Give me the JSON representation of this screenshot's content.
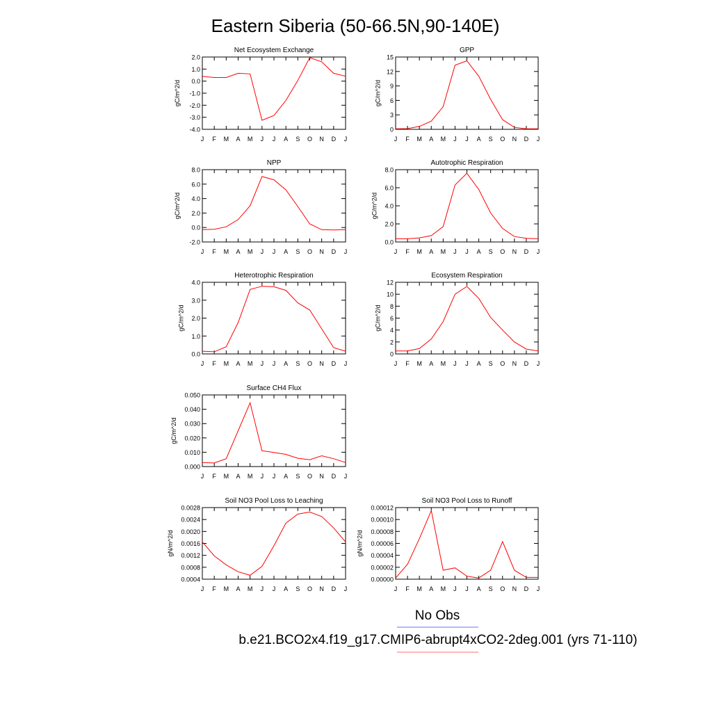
{
  "figure": {
    "title": "Eastern Siberia (50-66.5N,90-140E)",
    "legend": {
      "obs_label": "No Obs",
      "obs_color": "#6f6fff",
      "model_label": "b.e21.BCO2x4.f19_g17.CMIP6-abrupt4xCO2-2deg.001 (yrs 71-110)",
      "model_color": "#ff6f6f"
    },
    "line_color": "#ff0000"
  },
  "chart_data": [
    {
      "type": "line",
      "title": "Net Ecosystem Exchange",
      "ylabel": "gC/m^2/d",
      "x": [
        "J",
        "F",
        "M",
        "A",
        "M",
        "J",
        "J",
        "A",
        "S",
        "O",
        "N",
        "D",
        "J"
      ],
      "ylim": [
        -4.0,
        2.0
      ],
      "yticks": [
        "2.0",
        "1.0",
        "0.0",
        "-1.0",
        "-2.0",
        "-3.0",
        "-4.0"
      ],
      "series": [
        {
          "values": [
            0.4,
            0.3,
            0.3,
            0.65,
            0.6,
            -3.25,
            -2.85,
            -1.6,
            0.05,
            1.95,
            1.6,
            0.65,
            0.4
          ]
        }
      ]
    },
    {
      "type": "line",
      "title": "GPP",
      "ylabel": "gC/m^2/d",
      "x": [
        "J",
        "F",
        "M",
        "A",
        "M",
        "J",
        "J",
        "A",
        "S",
        "O",
        "N",
        "D",
        "J"
      ],
      "ylim": [
        0,
        15
      ],
      "yticks": [
        "15",
        "12",
        "9",
        "6",
        "3",
        "0"
      ],
      "series": [
        {
          "values": [
            0.1,
            0.15,
            0.6,
            1.7,
            4.7,
            13.3,
            14.2,
            11.0,
            6.2,
            2.0,
            0.4,
            0.1,
            0.1
          ]
        }
      ]
    },
    {
      "type": "line",
      "title": "NPP",
      "ylabel": "gC/m^2/d",
      "x": [
        "J",
        "F",
        "M",
        "A",
        "M",
        "J",
        "J",
        "A",
        "S",
        "O",
        "N",
        "D",
        "J"
      ],
      "ylim": [
        -2.0,
        8.0
      ],
      "yticks": [
        "8.0",
        "6.0",
        "4.0",
        "2.0",
        "0.0",
        "-2.0"
      ],
      "series": [
        {
          "values": [
            -0.3,
            -0.25,
            0.1,
            1.1,
            3.0,
            7.05,
            6.6,
            5.2,
            2.9,
            0.5,
            -0.3,
            -0.35,
            -0.3
          ]
        }
      ]
    },
    {
      "type": "line",
      "title": "Autotrophic Respiration",
      "ylabel": "gC/m^2/d",
      "x": [
        "J",
        "F",
        "M",
        "A",
        "M",
        "J",
        "J",
        "A",
        "S",
        "O",
        "N",
        "D",
        "J"
      ],
      "ylim": [
        0,
        8.0
      ],
      "yticks": [
        "8.0",
        "6.0",
        "4.0",
        "2.0",
        "0.0"
      ],
      "series": [
        {
          "values": [
            0.35,
            0.35,
            0.45,
            0.7,
            1.7,
            6.3,
            7.6,
            5.8,
            3.2,
            1.5,
            0.6,
            0.4,
            0.35
          ]
        }
      ]
    },
    {
      "type": "line",
      "title": "Heterotrophic Respiration",
      "ylabel": "gC/m^2/d",
      "x": [
        "J",
        "F",
        "M",
        "A",
        "M",
        "J",
        "J",
        "A",
        "S",
        "O",
        "N",
        "D",
        "J"
      ],
      "ylim": [
        0,
        4.0
      ],
      "yticks": [
        "4.0",
        "3.0",
        "2.0",
        "1.0",
        "0.0"
      ],
      "series": [
        {
          "values": [
            0.15,
            0.12,
            0.4,
            1.75,
            3.6,
            3.78,
            3.75,
            3.55,
            2.85,
            2.45,
            1.4,
            0.35,
            0.15
          ]
        }
      ]
    },
    {
      "type": "line",
      "title": "Ecosystem Respiration",
      "ylabel": "gC/m^2/d",
      "x": [
        "J",
        "F",
        "M",
        "A",
        "M",
        "J",
        "J",
        "A",
        "S",
        "O",
        "N",
        "D",
        "J"
      ],
      "ylim": [
        0,
        12
      ],
      "yticks": [
        "12",
        "10",
        "8",
        "6",
        "4",
        "2",
        "0"
      ],
      "series": [
        {
          "values": [
            0.5,
            0.5,
            0.9,
            2.5,
            5.4,
            10.0,
            11.3,
            9.3,
            6.1,
            4.0,
            2.0,
            0.8,
            0.5
          ]
        }
      ]
    },
    {
      "type": "line",
      "title": "Surface CH4 Flux",
      "ylabel": "gC/m^2/d",
      "x": [
        "J",
        "F",
        "M",
        "A",
        "M",
        "J",
        "J",
        "A",
        "S",
        "O",
        "N",
        "D",
        "J"
      ],
      "ylim": [
        0,
        0.05
      ],
      "yticks": [
        "0.050",
        "0.040",
        "0.030",
        "0.020",
        "0.010",
        "0.000"
      ],
      "series": [
        {
          "values": [
            0.0028,
            0.0025,
            0.0055,
            0.025,
            0.0445,
            0.011,
            0.0098,
            0.0085,
            0.0058,
            0.0048,
            0.0075,
            0.0055,
            0.0028
          ]
        }
      ]
    },
    {
      "type": "line",
      "title": "Soil NO3 Pool Loss to Leaching",
      "ylabel": "gN/m^2/d",
      "x": [
        "J",
        "F",
        "M",
        "A",
        "M",
        "J",
        "J",
        "A",
        "S",
        "O",
        "N",
        "D",
        "J"
      ],
      "ylim": [
        0.0004,
        0.0028
      ],
      "yticks": [
        "0.0028",
        "0.0024",
        "0.0020",
        "0.0016",
        "0.0012",
        "0.0008",
        "0.0004"
      ],
      "series": [
        {
          "values": [
            0.00165,
            0.00118,
            0.00088,
            0.00065,
            0.00053,
            0.00083,
            0.00152,
            0.00228,
            0.00258,
            0.00265,
            0.0025,
            0.00212,
            0.00165
          ]
        }
      ]
    },
    {
      "type": "line",
      "title": "Soil NO3 Pool Loss to Runoff",
      "ylabel": "gN/m^2/d",
      "x": [
        "J",
        "F",
        "M",
        "A",
        "M",
        "J",
        "J",
        "A",
        "S",
        "O",
        "N",
        "D",
        "J"
      ],
      "ylim": [
        0,
        0.00012
      ],
      "yticks": [
        "0.00012",
        "0.00010",
        "0.00008",
        "0.00006",
        "0.00004",
        "0.00002",
        "0.00000"
      ],
      "series": [
        {
          "values": [
            2e-06,
            2.5e-05,
            6.8e-05,
            0.000115,
            1.5e-05,
            1.9e-05,
            5e-06,
            2e-06,
            1.5e-05,
            6.3e-05,
            1.5e-05,
            3e-06,
            3e-06
          ]
        }
      ]
    }
  ]
}
